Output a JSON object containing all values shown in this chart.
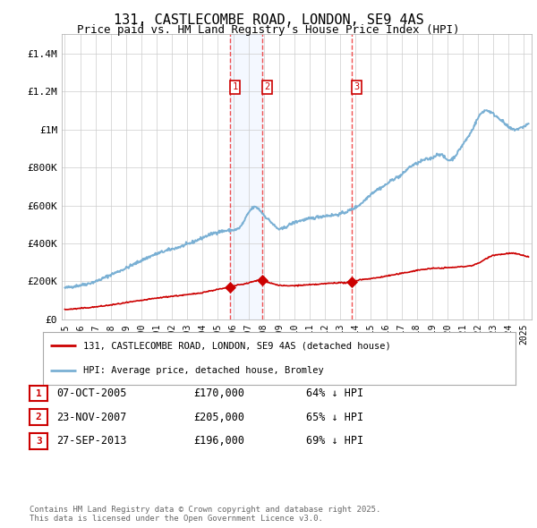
{
  "title": "131, CASTLECOMBE ROAD, LONDON, SE9 4AS",
  "subtitle": "Price paid vs. HM Land Registry's House Price Index (HPI)",
  "title_fontsize": 11,
  "subtitle_fontsize": 9,
  "ylim": [
    0,
    1500000
  ],
  "yticks": [
    0,
    200000,
    400000,
    600000,
    800000,
    1000000,
    1200000,
    1400000
  ],
  "ytick_labels": [
    "£0",
    "£200K",
    "£400K",
    "£600K",
    "£800K",
    "£1M",
    "£1.2M",
    "£1.4M"
  ],
  "background_color": "#ffffff",
  "plot_bg_color": "#ffffff",
  "grid_color": "#cccccc",
  "red_line_color": "#cc0000",
  "blue_line_color": "#7ab0d4",
  "sale_marker_color": "#cc0000",
  "vline_color": "#ee3333",
  "sale_events": [
    {
      "label": "1",
      "date_x": 2005.78,
      "price": 170000,
      "date_str": "07-OCT-2005",
      "price_str": "£170,000",
      "pct_str": "64% ↓ HPI"
    },
    {
      "label": "2",
      "date_x": 2007.9,
      "price": 205000,
      "date_str": "23-NOV-2007",
      "price_str": "£205,000",
      "pct_str": "65% ↓ HPI"
    },
    {
      "label": "3",
      "date_x": 2013.74,
      "price": 196000,
      "date_str": "27-SEP-2013",
      "price_str": "£196,000",
      "pct_str": "69% ↓ HPI"
    }
  ],
  "legend_label_red": "131, CASTLECOMBE ROAD, LONDON, SE9 4AS (detached house)",
  "legend_label_blue": "HPI: Average price, detached house, Bromley",
  "footer_text": "Contains HM Land Registry data © Crown copyright and database right 2025.\nThis data is licensed under the Open Government Licence v3.0.",
  "xmin": 1994.8,
  "xmax": 2025.5,
  "hpi_x": [
    1995,
    1996,
    1997,
    1998,
    1999,
    2000,
    2001,
    2002,
    2003,
    2004,
    2005,
    2006,
    2006.5,
    2007,
    2007.5,
    2008,
    2008.5,
    2009,
    2009.5,
    2010,
    2011,
    2012,
    2013,
    2013.5,
    2014,
    2014.5,
    2015,
    2016,
    2016.5,
    2017,
    2017.5,
    2018,
    2018.5,
    2019,
    2019.5,
    2020,
    2020.5,
    2021,
    2021.5,
    2022,
    2022.5,
    2023,
    2023.5,
    2024,
    2024.5,
    2025.3
  ],
  "hpi_y": [
    165000,
    180000,
    200000,
    235000,
    270000,
    310000,
    345000,
    370000,
    395000,
    430000,
    460000,
    470000,
    490000,
    560000,
    590000,
    550000,
    510000,
    475000,
    490000,
    510000,
    530000,
    545000,
    555000,
    570000,
    590000,
    620000,
    660000,
    710000,
    740000,
    760000,
    800000,
    820000,
    840000,
    850000,
    870000,
    840000,
    860000,
    920000,
    980000,
    1060000,
    1100000,
    1080000,
    1050000,
    1010000,
    1000000,
    1030000
  ],
  "red_x": [
    1995,
    1996,
    1997,
    1998,
    1999,
    2000,
    2001,
    2002,
    2003,
    2004,
    2005,
    2005.78,
    2006,
    2007,
    2007.9,
    2008.3,
    2009,
    2010,
    2011,
    2012,
    2013,
    2013.74,
    2014,
    2015,
    2016,
    2017,
    2018,
    2019,
    2020,
    2021,
    2022,
    2023,
    2023.5,
    2024,
    2024.5,
    2025.3
  ],
  "red_y": [
    52000,
    58000,
    66000,
    76000,
    88000,
    100000,
    112000,
    122000,
    130000,
    142000,
    158000,
    170000,
    175000,
    192000,
    205000,
    196000,
    180000,
    178000,
    182000,
    188000,
    193000,
    196000,
    203000,
    215000,
    228000,
    242000,
    258000,
    268000,
    272000,
    278000,
    295000,
    338000,
    342000,
    348000,
    345000,
    330000
  ]
}
